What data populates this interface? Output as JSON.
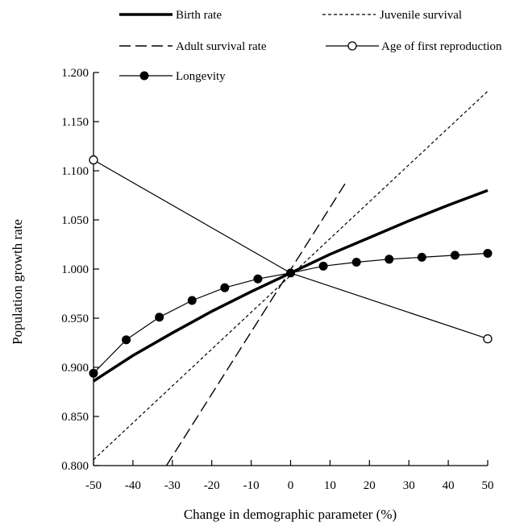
{
  "chart_data": {
    "type": "line",
    "xlabel": "Change in demographic parameter (%)",
    "ylabel": "Population growth rate",
    "xlim": [
      -50,
      50
    ],
    "ylim": [
      0.8,
      1.2
    ],
    "x_ticks": [
      "-50",
      "-40",
      "-30",
      "-20",
      "-10",
      "0",
      "10",
      "20",
      "30",
      "40",
      "50"
    ],
    "y_ticks": [
      "0.800",
      "0.850",
      "0.900",
      "0.950",
      "1.000",
      "1.050",
      "1.100",
      "1.150",
      "1.200"
    ],
    "legend_position": "top",
    "grid": false,
    "series": [
      {
        "name": "Birth rate",
        "style": "thick-solid",
        "x": [
          -50,
          -40,
          -30,
          -20,
          -10,
          0,
          10,
          20,
          30,
          40,
          50
        ],
        "y": [
          0.886,
          0.912,
          0.935,
          0.957,
          0.977,
          0.996,
          1.015,
          1.032,
          1.049,
          1.065,
          1.08
        ]
      },
      {
        "name": "Juvenile survival",
        "style": "short-dash",
        "x": [
          -50,
          50
        ],
        "y": [
          0.806,
          1.181
        ]
      },
      {
        "name": "Adult survival rate",
        "style": "long-dash",
        "x": [
          -31.5,
          14
        ],
        "y": [
          0.8,
          1.088
        ]
      },
      {
        "name": "Age of first reproduction",
        "style": "thin-solid-open-circle",
        "x": [
          -50,
          0,
          50
        ],
        "y": [
          1.111,
          0.996,
          0.929
        ],
        "markers_at": [
          -50,
          50
        ]
      },
      {
        "name": "Longevity",
        "style": "thin-solid-filled-circle",
        "x": [
          -50,
          -41.7,
          -33.3,
          -25,
          -16.7,
          -8.3,
          0,
          8.3,
          16.7,
          25,
          33.3,
          41.7,
          50
        ],
        "y": [
          0.894,
          0.928,
          0.951,
          0.968,
          0.981,
          0.99,
          0.996,
          1.003,
          1.007,
          1.01,
          1.012,
          1.014,
          1.016
        ]
      }
    ]
  }
}
